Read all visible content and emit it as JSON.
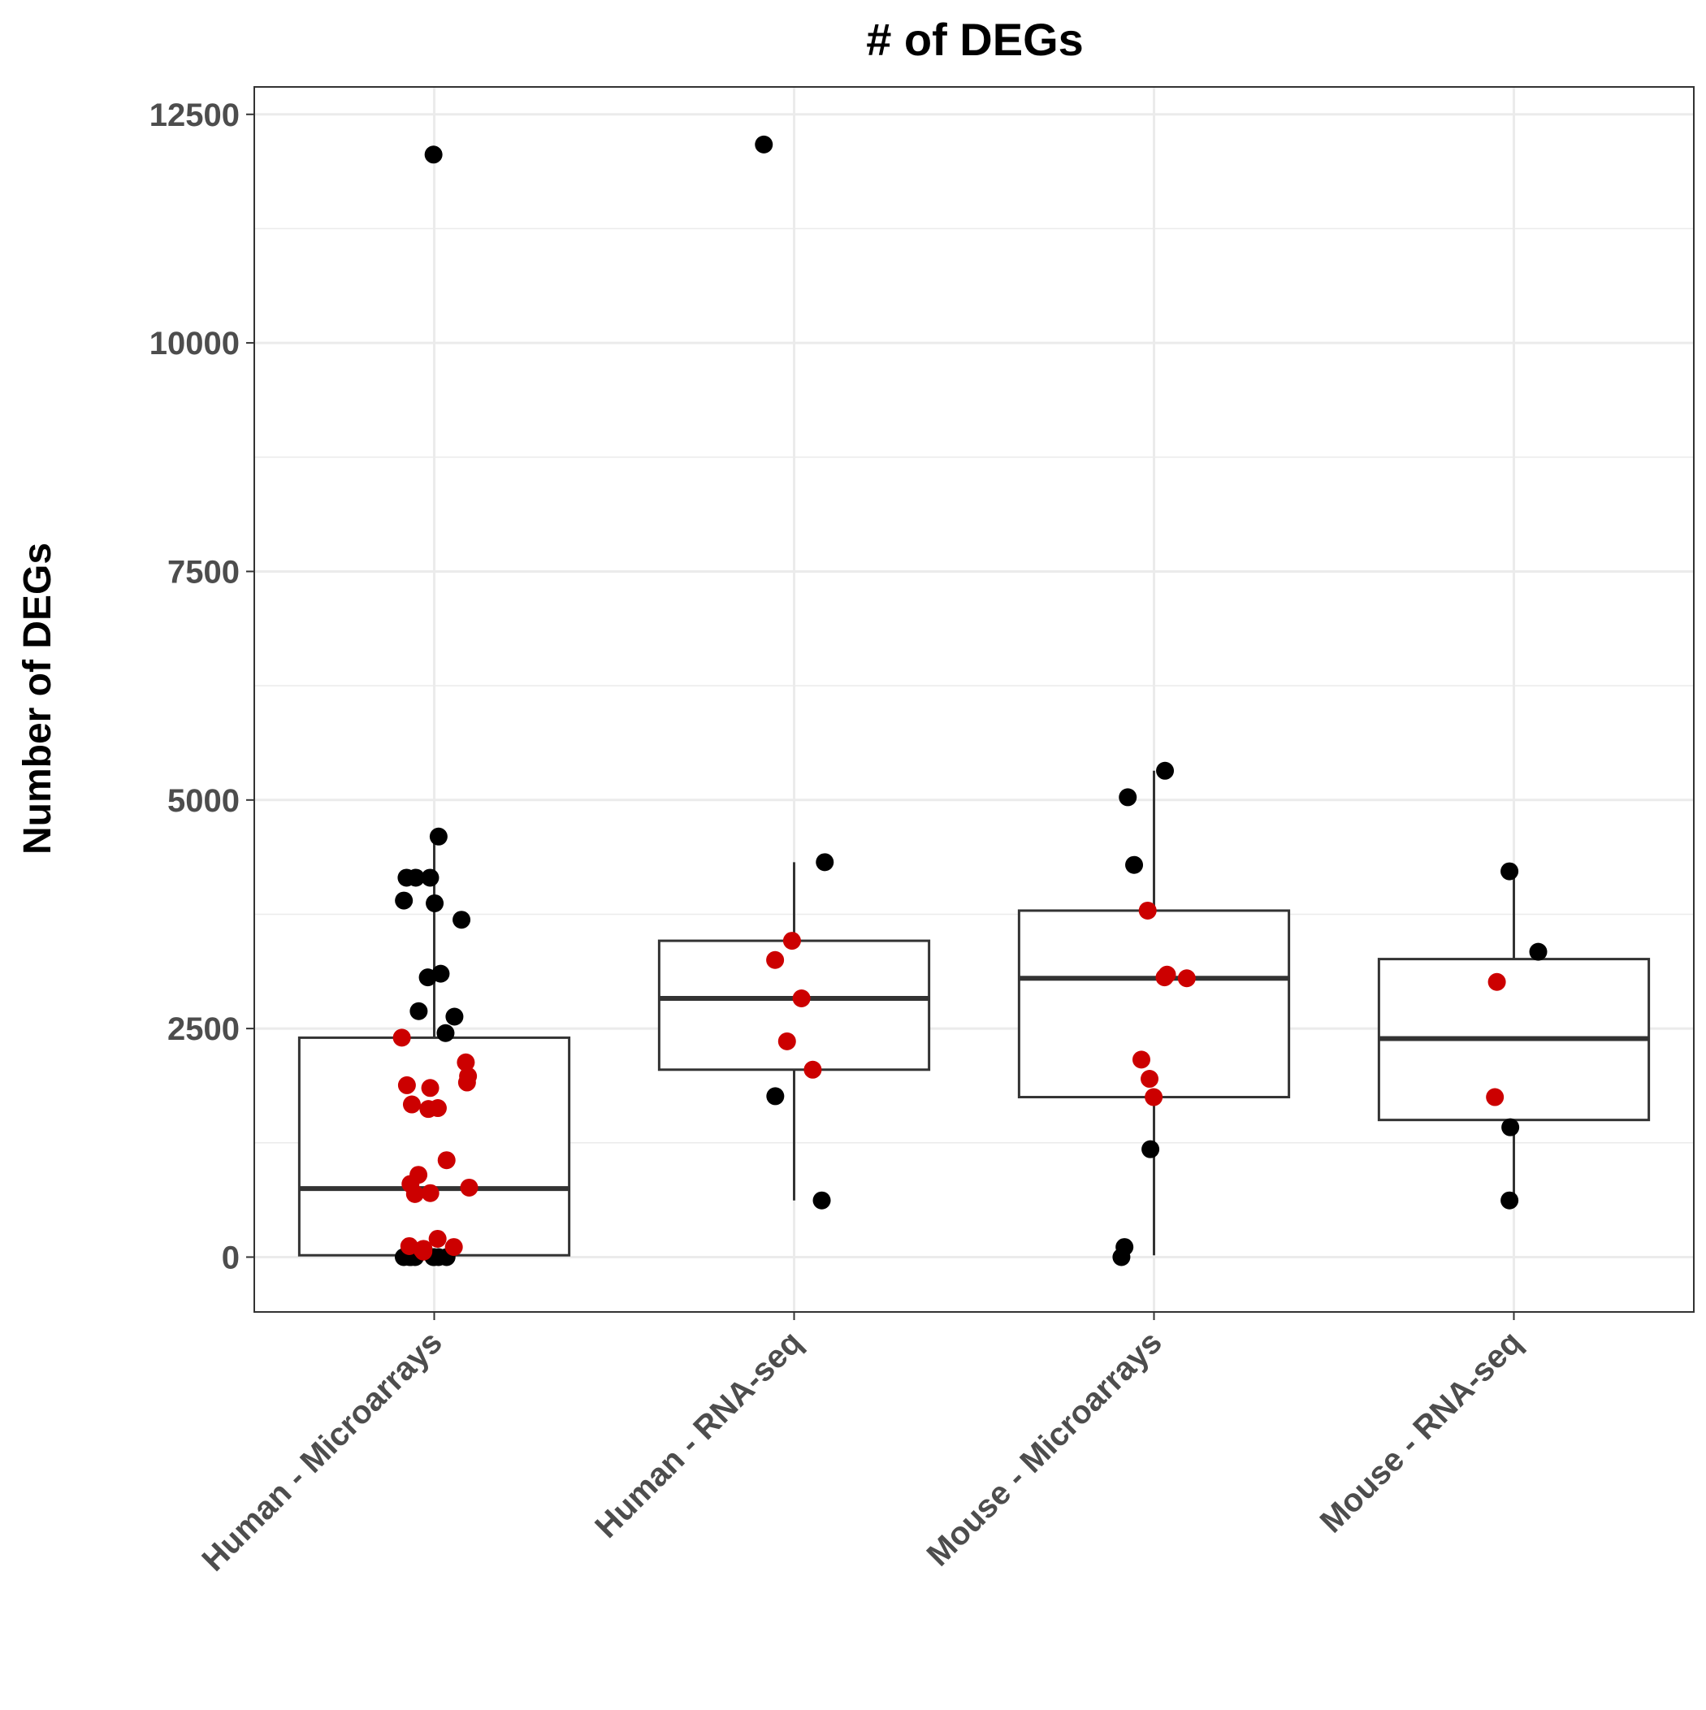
{
  "chart_data": {
    "type": "box",
    "title": "# of DEGs",
    "xlabel": "",
    "ylabel": "Number of DEGs",
    "ylim": [
      -600,
      12800
    ],
    "yticks": [
      0,
      2500,
      5000,
      7500,
      10000,
      12500
    ],
    "ytick_labels": [
      "0",
      "2500",
      "5000",
      "7500",
      "10000",
      "12500"
    ],
    "grid": true,
    "legend": "none",
    "colors": {
      "black_points": "#000000",
      "red_points": "#cc0000",
      "box": "#333333",
      "grid": "#ebebeb"
    },
    "categories": [
      "Human - Microarrays",
      "Human - RNA-seq",
      "Mouse - Microarrays",
      "Mouse - RNA-seq"
    ],
    "boxes": [
      {
        "category": "Human - Microarrays",
        "whisker_low": 0,
        "q1": 20,
        "median": 750,
        "q3": 2400,
        "whisker_high": 4600
      },
      {
        "category": "Human - RNA-seq",
        "whisker_low": 620,
        "q1": 2050,
        "median": 2830,
        "q3": 3460,
        "whisker_high": 4320
      },
      {
        "category": "Mouse - Microarrays",
        "whisker_low": 20,
        "q1": 1750,
        "median": 3050,
        "q3": 3790,
        "whisker_high": 5320
      },
      {
        "category": "Mouse - RNA-seq",
        "whisker_low": 620,
        "q1": 1500,
        "median": 2390,
        "q3": 3260,
        "whisker_high": 4220
      }
    ],
    "points": [
      {
        "category": "Human - Microarrays",
        "black": [
          12060,
          4600,
          4150,
          4150,
          4150,
          3870,
          3900,
          3690,
          3100,
          3060,
          2690,
          2630,
          2450,
          0,
          0,
          0,
          0,
          0,
          0,
          0,
          0
        ],
        "red": [
          2400,
          2130,
          1980,
          1880,
          1850,
          1910,
          1670,
          1620,
          1630,
          1060,
          900,
          800,
          760,
          700,
          690,
          200,
          80,
          120,
          110,
          90,
          60
        ]
      },
      {
        "category": "Human - RNA-seq",
        "black": [
          12170,
          4320,
          1760,
          620
        ],
        "red": [
          3460,
          3250,
          2830,
          2360,
          2050
        ]
      },
      {
        "category": "Mouse - Microarrays",
        "black": [
          5320,
          5030,
          4290,
          1180,
          110,
          0
        ],
        "red": [
          3790,
          3090,
          3060,
          3050,
          2160,
          1950,
          1750
        ]
      },
      {
        "category": "Mouse - RNA-seq",
        "black": [
          4220,
          3340,
          1420,
          620
        ],
        "red": [
          3010,
          1750
        ]
      }
    ]
  }
}
